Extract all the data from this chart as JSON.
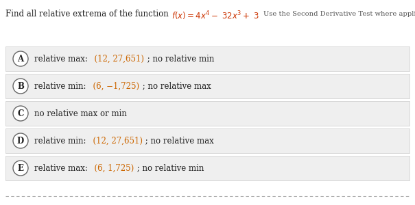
{
  "white_bg": "#ffffff",
  "title_text": "Find all relative extrema of the function ",
  "subtitle": "Use the Second Derivative Test where applicable.",
  "options": [
    {
      "letter": "A",
      "label": "relative max:",
      "colored_part": "  (12, 27,651)",
      "rest": " ; no relative min"
    },
    {
      "letter": "B",
      "label": "relative min:",
      "colored_part": "  (6, −1,725)",
      "rest": " ; no relative max"
    },
    {
      "letter": "C",
      "label": "no relative max or min",
      "colored_part": "",
      "rest": ""
    },
    {
      "letter": "D",
      "label": "relative min:",
      "colored_part": "  (12, 27,651)",
      "rest": " ; no relative max"
    },
    {
      "letter": "E",
      "label": "relative max:",
      "colored_part": "  (6, 1,725)",
      "rest": " ; no relative min"
    }
  ],
  "option_bg": "#efefef",
  "option_border": "#cccccc",
  "text_color": "#222222",
  "colored_text": "#cc6600",
  "formula_color": "#cc3300",
  "title_color": "#222222",
  "subtitle_color": "#555555",
  "circle_color": "#666666",
  "font_size": 8.5,
  "title_font_size": 8.5,
  "dashed_line_color": "#aaaaaa"
}
